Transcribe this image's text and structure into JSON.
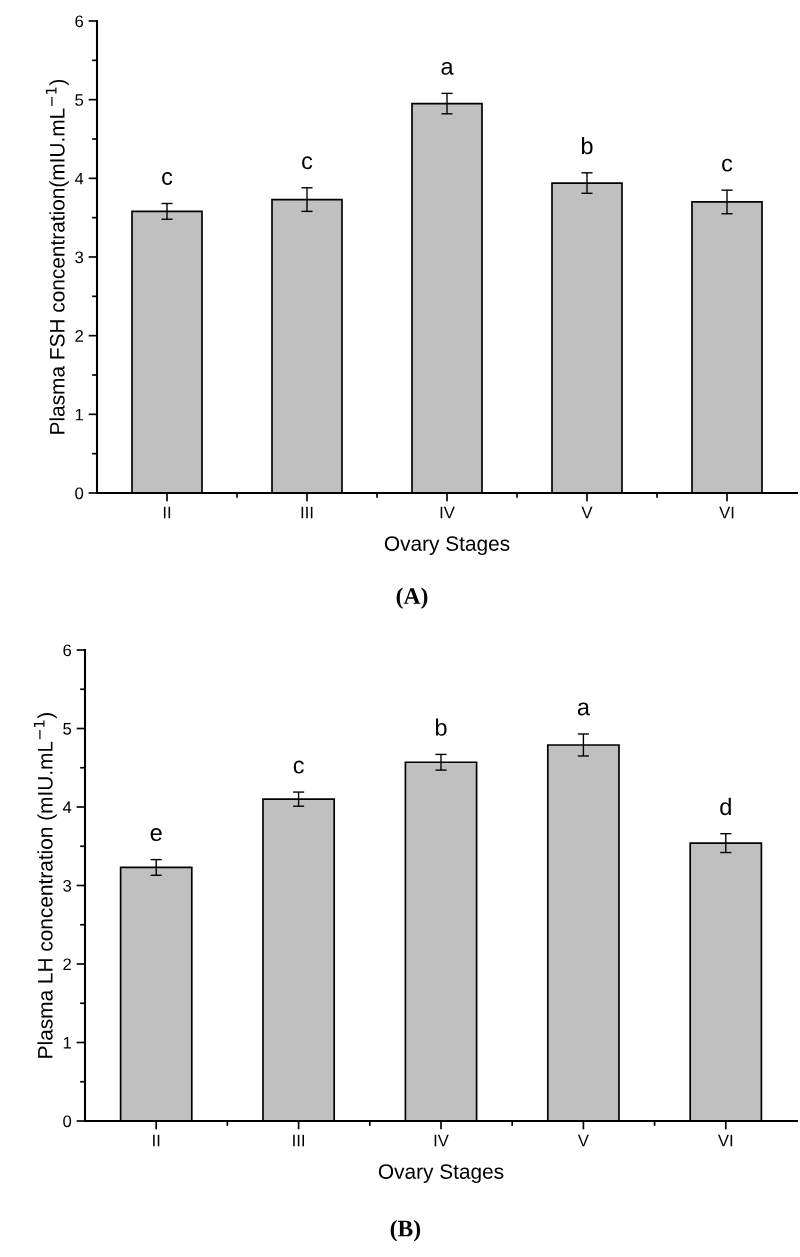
{
  "chart_data": [
    {
      "type": "bar",
      "title": "(A)",
      "xlabel": "Ovary Stages",
      "ylabel": "Plasma FSH concentration(mIU.mL$^{−1}$)",
      "categories": [
        "II",
        "III",
        "IV",
        "V",
        "VI"
      ],
      "values": [
        3.58,
        3.73,
        4.95,
        3.94,
        3.7
      ],
      "errors": [
        0.1,
        0.15,
        0.13,
        0.13,
        0.15
      ],
      "color": "#c0c0c0",
      "ylim": [
        0,
        6
      ],
      "yticks": [
        0,
        1,
        2,
        3,
        4,
        5,
        6
      ],
      "annotations": [
        "c",
        "c",
        "a",
        "b",
        "c"
      ]
    },
    {
      "type": "bar",
      "title": "(B)",
      "xlabel": "Ovary Stages",
      "ylabel": "Plasma LH concentration (mIU.mL$^{−1}$)",
      "categories": [
        "II",
        "III",
        "IV",
        "V",
        "VI"
      ],
      "values": [
        3.23,
        4.1,
        4.57,
        4.79,
        3.54
      ],
      "errors": [
        0.1,
        0.09,
        0.1,
        0.14,
        0.12
      ],
      "color": "#c0c0c0",
      "ylim": [
        0,
        6
      ],
      "yticks": [
        0,
        1,
        2,
        3,
        4,
        5,
        6
      ],
      "annotations": [
        "e",
        "c",
        "b",
        "a",
        "d"
      ]
    }
  ]
}
